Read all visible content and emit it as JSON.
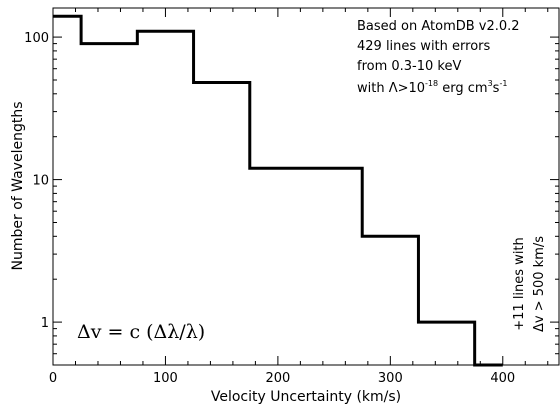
{
  "chart_data": {
    "type": "histogram",
    "title": "",
    "xlabel": "Velocity Uncertainty (km/s)",
    "ylabel": "Number of Wavelengths",
    "xlim": [
      0,
      450
    ],
    "ylim": [
      0.5,
      160
    ],
    "yscale": "log",
    "grid": false,
    "x_ticks": [
      0,
      100,
      200,
      300,
      400
    ],
    "x_tick_labels": [
      "0",
      "100",
      "200",
      "300",
      "400"
    ],
    "y_ticks": [
      1,
      10,
      100
    ],
    "y_tick_labels": [
      "1",
      "10",
      "100"
    ],
    "bins": [
      {
        "x0": 0,
        "x1": 25,
        "value": 140
      },
      {
        "x0": 25,
        "x1": 75,
        "value": 90
      },
      {
        "x0": 75,
        "x1": 125,
        "value": 110
      },
      {
        "x0": 125,
        "x1": 175,
        "value": 48
      },
      {
        "x0": 175,
        "x1": 275,
        "value": 12
      },
      {
        "x0": 275,
        "x1": 325,
        "value": 4
      },
      {
        "x0": 325,
        "x1": 375,
        "value": 1
      },
      {
        "x0": 375,
        "x1": 400,
        "value": 0.5
      }
    ],
    "annotations": {
      "top_right": {
        "line1": "Based on AtomDB v2.0.2",
        "line2": "429 lines with errors",
        "line3": "from 0.3-10 keV",
        "line4_prefix": "with Λ>10",
        "line4_exp": "-18",
        "line4_mid": " erg cm",
        "line4_exp2": "3",
        "line4_mid2": "s",
        "line4_exp3": "-1"
      },
      "formula": "Δv = c (Δλ/λ)",
      "right_note_line1": "+11 lines with",
      "right_note_line2": "Δv > 500 km/s"
    }
  }
}
